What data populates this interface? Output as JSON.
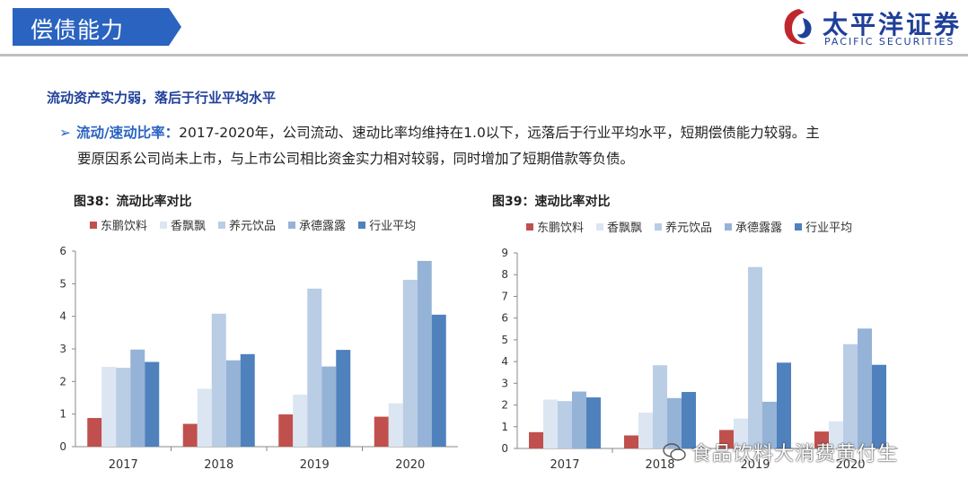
{
  "header": {
    "title": "偿债能力"
  },
  "logo": {
    "cn": "太平洋证券",
    "en": "PACIFIC SECURITIES"
  },
  "section_heading": "流动资产实力弱，落后于行业平均水平",
  "bullet": {
    "lead": "流动/速动比率：",
    "text1": "2017-2020年，公司流动、速动比率均维持在1.0以下，远落后于行业平均水平，短期偿债能力较弱。主",
    "text2": "要原因系公司尚未上市，与上市公司相比资金实力相对较弱，同时增加了短期借款等负债。"
  },
  "watermark": "食品饮料大消费黄付生",
  "chart_data": [
    {
      "type": "bar",
      "title": "图38：流动比率对比",
      "categories": [
        "2017",
        "2018",
        "2019",
        "2020"
      ],
      "ylim": [
        0,
        6
      ],
      "yticks": [
        "0",
        "1",
        "2",
        "3",
        "4",
        "5",
        "6"
      ],
      "legend_position": "top",
      "series": [
        {
          "name": "东鹏饮料",
          "color": "#c0504d",
          "values": [
            0.88,
            0.7,
            0.99,
            0.92
          ]
        },
        {
          "name": "香飘飘",
          "color": "#dce6f2",
          "values": [
            2.45,
            1.78,
            1.6,
            1.33
          ]
        },
        {
          "name": "养元饮品",
          "color": "#b9cde5",
          "values": [
            2.42,
            4.08,
            4.85,
            5.12
          ]
        },
        {
          "name": "承德露露",
          "color": "#95b3d7",
          "values": [
            2.98,
            2.65,
            2.46,
            5.7
          ]
        },
        {
          "name": "行业平均",
          "color": "#4f81bd",
          "values": [
            2.6,
            2.84,
            2.97,
            4.05
          ]
        }
      ]
    },
    {
      "type": "bar",
      "title": "图39：速动比率对比",
      "categories": [
        "2017",
        "2018",
        "2019",
        "2020"
      ],
      "ylim": [
        0,
        9
      ],
      "yticks": [
        "0",
        "1",
        "2",
        "3",
        "4",
        "5",
        "6",
        "7",
        "8",
        "9"
      ],
      "legend_position": "top",
      "series": [
        {
          "name": "东鹏饮料",
          "color": "#c0504d",
          "values": [
            0.75,
            0.6,
            0.85,
            0.78
          ]
        },
        {
          "name": "香飘飘",
          "color": "#dce6f2",
          "values": [
            2.25,
            1.65,
            1.38,
            1.25
          ]
        },
        {
          "name": "养元饮品",
          "color": "#b9cde5",
          "values": [
            2.18,
            3.83,
            8.35,
            4.8
          ]
        },
        {
          "name": "承德露露",
          "color": "#95b3d7",
          "values": [
            2.62,
            2.32,
            2.15,
            5.52
          ]
        },
        {
          "name": "行业平均",
          "color": "#4f81bd",
          "values": [
            2.35,
            2.6,
            3.95,
            3.85
          ]
        }
      ]
    }
  ]
}
